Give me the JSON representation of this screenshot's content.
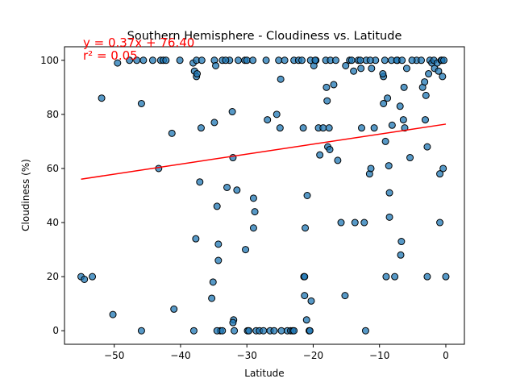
{
  "chart_data": {
    "type": "scatter",
    "title": "Southern Hemisphere - Cloudiness vs. Latitude",
    "xlabel": "Latitude",
    "ylabel": "Cloudiness (%)",
    "xlim": [
      -57.5,
      2.8
    ],
    "ylim": [
      -5,
      105
    ],
    "xticks": [
      -50,
      -40,
      -30,
      -20,
      -10,
      0
    ],
    "yticks": [
      0,
      20,
      40,
      60,
      80,
      100
    ],
    "grid": false,
    "point_color": "#1f77b4",
    "point_edge_color": "#000000",
    "regression": {
      "equation": "y = 0.37x + 76.40",
      "r_squared": "r² = 0.05",
      "slope": 0.37,
      "intercept": 76.4,
      "x_range": [
        -55.0,
        0.0
      ],
      "color": "#ff0000"
    },
    "points": [
      [
        -55.0,
        20
      ],
      [
        -54.5,
        19
      ],
      [
        -53.3,
        20
      ],
      [
        -51.9,
        86
      ],
      [
        -50.2,
        6
      ],
      [
        -49.5,
        99
      ],
      [
        -47.7,
        100
      ],
      [
        -46.6,
        100
      ],
      [
        -45.9,
        84
      ],
      [
        -45.9,
        0
      ],
      [
        -45.6,
        100
      ],
      [
        -44.2,
        100
      ],
      [
        -43.3,
        60
      ],
      [
        -43.0,
        100
      ],
      [
        -42.6,
        100
      ],
      [
        -42.2,
        100
      ],
      [
        -41.3,
        73
      ],
      [
        -41.0,
        8
      ],
      [
        -38.1,
        99
      ],
      [
        -37.9,
        96
      ],
      [
        -37.6,
        94
      ],
      [
        -37.5,
        95
      ],
      [
        -37.1,
        55
      ],
      [
        -36.9,
        75
      ],
      [
        -37.6,
        100
      ],
      [
        -38.0,
        0
      ],
      [
        -35.3,
        12
      ],
      [
        -35.1,
        18
      ],
      [
        -34.9,
        100
      ],
      [
        -34.7,
        98
      ],
      [
        -34.9,
        77
      ],
      [
        -34.5,
        46
      ],
      [
        -34.3,
        32
      ],
      [
        -34.3,
        26
      ],
      [
        -34.0,
        0
      ],
      [
        -34.5,
        0
      ],
      [
        -33.7,
        0
      ],
      [
        -33.7,
        100
      ],
      [
        -33.0,
        53
      ],
      [
        -32.6,
        100
      ],
      [
        -32.2,
        81
      ],
      [
        -32.1,
        64
      ],
      [
        -32.0,
        4
      ],
      [
        -32.1,
        3
      ],
      [
        -31.9,
        0
      ],
      [
        -31.5,
        52
      ],
      [
        -31.3,
        100
      ],
      [
        -30.3,
        100
      ],
      [
        -30.0,
        100
      ],
      [
        -30.2,
        30
      ],
      [
        -29.9,
        0
      ],
      [
        -29.7,
        0
      ],
      [
        -29.1,
        100
      ],
      [
        -29.0,
        49
      ],
      [
        -29.0,
        38
      ],
      [
        -28.8,
        44
      ],
      [
        -28.6,
        0
      ],
      [
        -28.1,
        0
      ],
      [
        -27.5,
        0
      ],
      [
        -26.9,
        78
      ],
      [
        -26.5,
        0
      ],
      [
        -25.9,
        0
      ],
      [
        -25.5,
        80
      ],
      [
        -25.2,
        100
      ],
      [
        -25.0,
        75
      ],
      [
        -24.9,
        93
      ],
      [
        -24.8,
        0
      ],
      [
        -23.9,
        0
      ],
      [
        -23.4,
        0
      ],
      [
        -23.1,
        0
      ],
      [
        -22.9,
        100
      ],
      [
        -22.9,
        0
      ],
      [
        -22.2,
        100
      ],
      [
        -21.7,
        100
      ],
      [
        -21.5,
        75
      ],
      [
        -21.4,
        20
      ],
      [
        -21.3,
        20
      ],
      [
        -21.2,
        38
      ],
      [
        -21.3,
        13
      ],
      [
        -20.9,
        50
      ],
      [
        -21.0,
        4
      ],
      [
        -20.6,
        0
      ],
      [
        -20.5,
        0
      ],
      [
        -20.3,
        11
      ],
      [
        -20.4,
        100
      ],
      [
        -19.9,
        98
      ],
      [
        -19.6,
        100
      ],
      [
        -19.2,
        75
      ],
      [
        -19.0,
        65
      ],
      [
        -18.5,
        75
      ],
      [
        -18.1,
        100
      ],
      [
        -18.0,
        90
      ],
      [
        -17.9,
        85
      ],
      [
        -17.8,
        68
      ],
      [
        -17.5,
        67
      ],
      [
        -17.4,
        100
      ],
      [
        -17.6,
        75
      ],
      [
        -16.9,
        91
      ],
      [
        -16.6,
        100
      ],
      [
        -16.3,
        63
      ],
      [
        -15.8,
        40
      ],
      [
        -15.2,
        13
      ],
      [
        -15.1,
        98
      ],
      [
        -14.5,
        100
      ],
      [
        -14.2,
        100
      ],
      [
        -13.9,
        96
      ],
      [
        -13.7,
        40
      ],
      [
        -13.2,
        100
      ],
      [
        -12.8,
        97
      ],
      [
        -12.7,
        75
      ],
      [
        -12.3,
        40
      ],
      [
        -12.1,
        0
      ],
      [
        -12.0,
        100
      ],
      [
        -11.5,
        58
      ],
      [
        -11.3,
        60
      ],
      [
        -10.8,
        75
      ],
      [
        -10.6,
        100
      ],
      [
        -11.2,
        97
      ],
      [
        -11.4,
        100
      ],
      [
        -9.4,
        94
      ],
      [
        -9.4,
        84
      ],
      [
        -9.1,
        70
      ],
      [
        -9.0,
        20
      ],
      [
        -8.8,
        86
      ],
      [
        -8.6,
        61
      ],
      [
        -8.5,
        42
      ],
      [
        -8.5,
        51
      ],
      [
        -8.1,
        76
      ],
      [
        -7.7,
        20
      ],
      [
        -7.3,
        100
      ],
      [
        -6.9,
        83
      ],
      [
        -6.7,
        33
      ],
      [
        -6.8,
        28
      ],
      [
        -6.4,
        78
      ],
      [
        -6.3,
        90
      ],
      [
        -6.2,
        75
      ],
      [
        -5.9,
        97
      ],
      [
        -5.4,
        64
      ],
      [
        -4.4,
        100
      ],
      [
        -3.7,
        100
      ],
      [
        -3.5,
        90
      ],
      [
        -3.2,
        92
      ],
      [
        -3.1,
        78
      ],
      [
        -3.0,
        87
      ],
      [
        -2.8,
        68
      ],
      [
        -2.8,
        20
      ],
      [
        -2.6,
        95
      ],
      [
        -2.4,
        100
      ],
      [
        -2.1,
        99
      ],
      [
        -1.8,
        100
      ],
      [
        -1.7,
        97
      ],
      [
        -1.3,
        99
      ],
      [
        -1.1,
        96
      ],
      [
        -0.9,
        58
      ],
      [
        -0.9,
        40
      ],
      [
        -0.7,
        100
      ],
      [
        -0.6,
        100
      ],
      [
        -0.5,
        94
      ],
      [
        -0.4,
        60
      ],
      [
        -0.3,
        100
      ],
      [
        0.0,
        20
      ],
      [
        -8.2,
        100
      ],
      [
        -9.2,
        100
      ],
      [
        -7.4,
        100
      ],
      [
        -6.6,
        100
      ],
      [
        -5.1,
        100
      ],
      [
        -19.7,
        100
      ],
      [
        -24.3,
        100
      ],
      [
        -27.1,
        100
      ],
      [
        -12.9,
        100
      ],
      [
        -9.5,
        95
      ],
      [
        -37.7,
        34
      ],
      [
        -40.1,
        100
      ],
      [
        -36.8,
        100
      ],
      [
        -33.2,
        100
      ]
    ]
  }
}
